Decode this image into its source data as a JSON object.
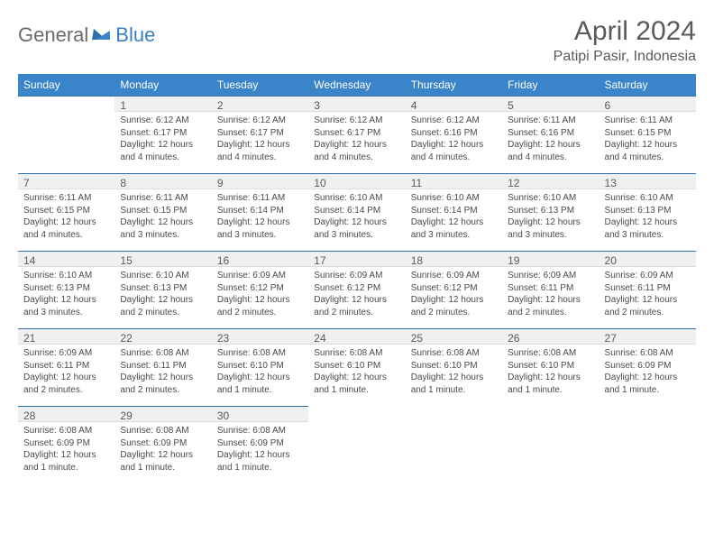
{
  "logo": {
    "general": "General",
    "blue": "Blue"
  },
  "title": "April 2024",
  "location": "Patipi Pasir, Indonesia",
  "colors": {
    "header_bg": "#3a85c9",
    "header_text": "#ffffff",
    "daybar_bg": "#eef0f1",
    "daybar_border_top": "#2f6ea8",
    "body_text": "#4a4a4a",
    "logo_blue": "#3a7fc4",
    "logo_gray": "#6a6a6a"
  },
  "weekdays": [
    "Sunday",
    "Monday",
    "Tuesday",
    "Wednesday",
    "Thursday",
    "Friday",
    "Saturday"
  ],
  "weeks": [
    [
      null,
      {
        "n": "1",
        "sr": "Sunrise: 6:12 AM",
        "ss": "Sunset: 6:17 PM",
        "dl": "Daylight: 12 hours and 4 minutes."
      },
      {
        "n": "2",
        "sr": "Sunrise: 6:12 AM",
        "ss": "Sunset: 6:17 PM",
        "dl": "Daylight: 12 hours and 4 minutes."
      },
      {
        "n": "3",
        "sr": "Sunrise: 6:12 AM",
        "ss": "Sunset: 6:17 PM",
        "dl": "Daylight: 12 hours and 4 minutes."
      },
      {
        "n": "4",
        "sr": "Sunrise: 6:12 AM",
        "ss": "Sunset: 6:16 PM",
        "dl": "Daylight: 12 hours and 4 minutes."
      },
      {
        "n": "5",
        "sr": "Sunrise: 6:11 AM",
        "ss": "Sunset: 6:16 PM",
        "dl": "Daylight: 12 hours and 4 minutes."
      },
      {
        "n": "6",
        "sr": "Sunrise: 6:11 AM",
        "ss": "Sunset: 6:15 PM",
        "dl": "Daylight: 12 hours and 4 minutes."
      }
    ],
    [
      {
        "n": "7",
        "sr": "Sunrise: 6:11 AM",
        "ss": "Sunset: 6:15 PM",
        "dl": "Daylight: 12 hours and 4 minutes."
      },
      {
        "n": "8",
        "sr": "Sunrise: 6:11 AM",
        "ss": "Sunset: 6:15 PM",
        "dl": "Daylight: 12 hours and 3 minutes."
      },
      {
        "n": "9",
        "sr": "Sunrise: 6:11 AM",
        "ss": "Sunset: 6:14 PM",
        "dl": "Daylight: 12 hours and 3 minutes."
      },
      {
        "n": "10",
        "sr": "Sunrise: 6:10 AM",
        "ss": "Sunset: 6:14 PM",
        "dl": "Daylight: 12 hours and 3 minutes."
      },
      {
        "n": "11",
        "sr": "Sunrise: 6:10 AM",
        "ss": "Sunset: 6:14 PM",
        "dl": "Daylight: 12 hours and 3 minutes."
      },
      {
        "n": "12",
        "sr": "Sunrise: 6:10 AM",
        "ss": "Sunset: 6:13 PM",
        "dl": "Daylight: 12 hours and 3 minutes."
      },
      {
        "n": "13",
        "sr": "Sunrise: 6:10 AM",
        "ss": "Sunset: 6:13 PM",
        "dl": "Daylight: 12 hours and 3 minutes."
      }
    ],
    [
      {
        "n": "14",
        "sr": "Sunrise: 6:10 AM",
        "ss": "Sunset: 6:13 PM",
        "dl": "Daylight: 12 hours and 3 minutes."
      },
      {
        "n": "15",
        "sr": "Sunrise: 6:10 AM",
        "ss": "Sunset: 6:13 PM",
        "dl": "Daylight: 12 hours and 2 minutes."
      },
      {
        "n": "16",
        "sr": "Sunrise: 6:09 AM",
        "ss": "Sunset: 6:12 PM",
        "dl": "Daylight: 12 hours and 2 minutes."
      },
      {
        "n": "17",
        "sr": "Sunrise: 6:09 AM",
        "ss": "Sunset: 6:12 PM",
        "dl": "Daylight: 12 hours and 2 minutes."
      },
      {
        "n": "18",
        "sr": "Sunrise: 6:09 AM",
        "ss": "Sunset: 6:12 PM",
        "dl": "Daylight: 12 hours and 2 minutes."
      },
      {
        "n": "19",
        "sr": "Sunrise: 6:09 AM",
        "ss": "Sunset: 6:11 PM",
        "dl": "Daylight: 12 hours and 2 minutes."
      },
      {
        "n": "20",
        "sr": "Sunrise: 6:09 AM",
        "ss": "Sunset: 6:11 PM",
        "dl": "Daylight: 12 hours and 2 minutes."
      }
    ],
    [
      {
        "n": "21",
        "sr": "Sunrise: 6:09 AM",
        "ss": "Sunset: 6:11 PM",
        "dl": "Daylight: 12 hours and 2 minutes."
      },
      {
        "n": "22",
        "sr": "Sunrise: 6:08 AM",
        "ss": "Sunset: 6:11 PM",
        "dl": "Daylight: 12 hours and 2 minutes."
      },
      {
        "n": "23",
        "sr": "Sunrise: 6:08 AM",
        "ss": "Sunset: 6:10 PM",
        "dl": "Daylight: 12 hours and 1 minute."
      },
      {
        "n": "24",
        "sr": "Sunrise: 6:08 AM",
        "ss": "Sunset: 6:10 PM",
        "dl": "Daylight: 12 hours and 1 minute."
      },
      {
        "n": "25",
        "sr": "Sunrise: 6:08 AM",
        "ss": "Sunset: 6:10 PM",
        "dl": "Daylight: 12 hours and 1 minute."
      },
      {
        "n": "26",
        "sr": "Sunrise: 6:08 AM",
        "ss": "Sunset: 6:10 PM",
        "dl": "Daylight: 12 hours and 1 minute."
      },
      {
        "n": "27",
        "sr": "Sunrise: 6:08 AM",
        "ss": "Sunset: 6:09 PM",
        "dl": "Daylight: 12 hours and 1 minute."
      }
    ],
    [
      {
        "n": "28",
        "sr": "Sunrise: 6:08 AM",
        "ss": "Sunset: 6:09 PM",
        "dl": "Daylight: 12 hours and 1 minute."
      },
      {
        "n": "29",
        "sr": "Sunrise: 6:08 AM",
        "ss": "Sunset: 6:09 PM",
        "dl": "Daylight: 12 hours and 1 minute."
      },
      {
        "n": "30",
        "sr": "Sunrise: 6:08 AM",
        "ss": "Sunset: 6:09 PM",
        "dl": "Daylight: 12 hours and 1 minute."
      },
      null,
      null,
      null,
      null
    ]
  ]
}
